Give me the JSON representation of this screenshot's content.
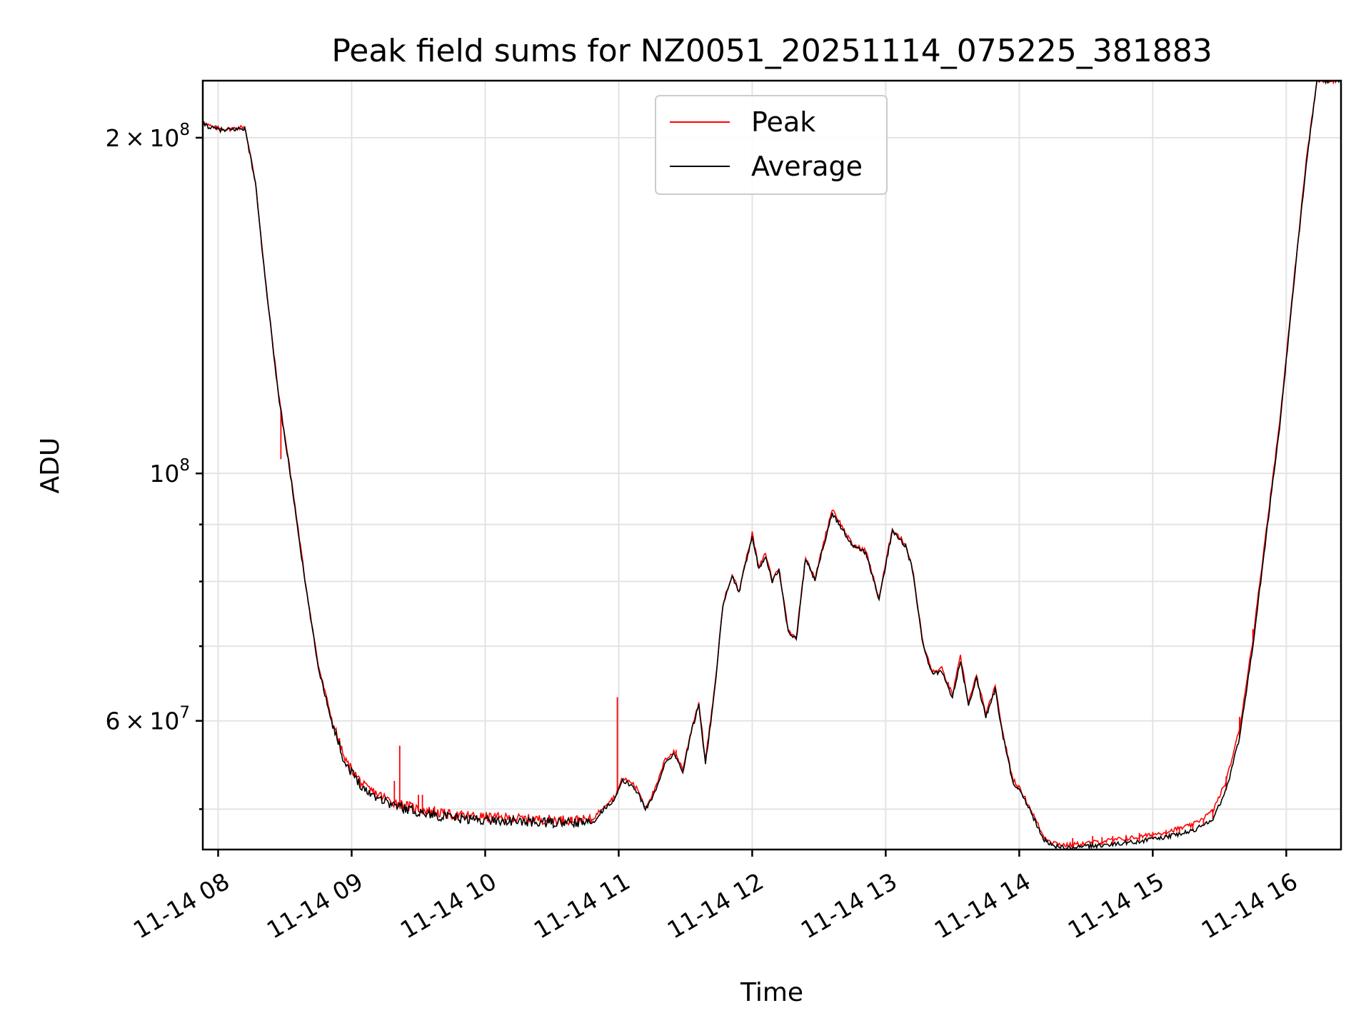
{
  "chart_data": {
    "type": "line",
    "title": "Peak field sums for NZ0051_20251114_075225_381883",
    "xlabel": "Time",
    "ylabel": "ADU",
    "yscale": "log",
    "xlim_hours": [
      7.885,
      16.41
    ],
    "ylim": [
      46000000,
      225000000
    ],
    "x_ticks": [
      {
        "hour": 8,
        "label": "11-14 08"
      },
      {
        "hour": 9,
        "label": "11-14 09"
      },
      {
        "hour": 10,
        "label": "11-14 10"
      },
      {
        "hour": 11,
        "label": "11-14 11"
      },
      {
        "hour": 12,
        "label": "11-14 12"
      },
      {
        "hour": 13,
        "label": "11-14 13"
      },
      {
        "hour": 14,
        "label": "11-14 14"
      },
      {
        "hour": 15,
        "label": "11-14 15"
      },
      {
        "hour": 16,
        "label": "11-14 16"
      }
    ],
    "y_major_ticks": [
      {
        "value": 60000000,
        "mant": "6",
        "exp": "7",
        "form": "mantissa"
      },
      {
        "value": 100000000,
        "mant": "",
        "exp": "8",
        "form": "power"
      },
      {
        "value": 200000000,
        "mant": "2",
        "exp": "8",
        "form": "mantissa"
      }
    ],
    "y_minor_grid": [
      50000000,
      70000000,
      80000000,
      90000000
    ],
    "legend": {
      "location": "upper center",
      "entries": [
        {
          "label": "Peak",
          "color": "#ff0000"
        },
        {
          "label": "Average",
          "color": "#000000"
        }
      ]
    },
    "series": [
      {
        "name": "Average",
        "color": "#000000",
        "points": [
          [
            7.885,
            206000000
          ],
          [
            7.95,
            204000000
          ],
          [
            8.05,
            203000000
          ],
          [
            8.2,
            204000000
          ],
          [
            8.28,
            182000000
          ],
          [
            8.35,
            150000000
          ],
          [
            8.45,
            118000000
          ],
          [
            8.55,
            98000000
          ],
          [
            8.65,
            80000000
          ],
          [
            8.75,
            67000000
          ],
          [
            8.85,
            60000000
          ],
          [
            8.95,
            55000000
          ],
          [
            9.1,
            52000000
          ],
          [
            9.3,
            50500000
          ],
          [
            9.5,
            49700000
          ],
          [
            9.75,
            49100000
          ],
          [
            10.0,
            48900000
          ],
          [
            10.3,
            48700000
          ],
          [
            10.6,
            48600000
          ],
          [
            10.8,
            48600000
          ],
          [
            10.9,
            50200000
          ],
          [
            10.97,
            51000000
          ],
          [
            11.03,
            53000000
          ],
          [
            11.1,
            52500000
          ],
          [
            11.15,
            51600000
          ],
          [
            11.2,
            49900000
          ],
          [
            11.28,
            52000000
          ],
          [
            11.35,
            55200000
          ],
          [
            11.42,
            56000000
          ],
          [
            11.48,
            54000000
          ],
          [
            11.55,
            59000000
          ],
          [
            11.6,
            62000000
          ],
          [
            11.65,
            55000000
          ],
          [
            11.72,
            64000000
          ],
          [
            11.78,
            76000000
          ],
          [
            11.85,
            81000000
          ],
          [
            11.9,
            78000000
          ],
          [
            11.95,
            83000000
          ],
          [
            12.0,
            88000000
          ],
          [
            12.05,
            82000000
          ],
          [
            12.1,
            84500000
          ],
          [
            12.15,
            80000000
          ],
          [
            12.2,
            82000000
          ],
          [
            12.27,
            72000000
          ],
          [
            12.33,
            71000000
          ],
          [
            12.4,
            84000000
          ],
          [
            12.47,
            80000000
          ],
          [
            12.52,
            85000000
          ],
          [
            12.6,
            92000000
          ],
          [
            12.68,
            89000000
          ],
          [
            12.75,
            86000000
          ],
          [
            12.85,
            85000000
          ],
          [
            12.95,
            77000000
          ],
          [
            13.05,
            89000000
          ],
          [
            13.15,
            86000000
          ],
          [
            13.2,
            82000000
          ],
          [
            13.28,
            70000000
          ],
          [
            13.35,
            66000000
          ],
          [
            13.42,
            66500000
          ],
          [
            13.5,
            63000000
          ],
          [
            13.56,
            68000000
          ],
          [
            13.62,
            62000000
          ],
          [
            13.68,
            65500000
          ],
          [
            13.75,
            60500000
          ],
          [
            13.82,
            64000000
          ],
          [
            13.88,
            58000000
          ],
          [
            13.95,
            53000000
          ],
          [
            14.02,
            51500000
          ],
          [
            14.1,
            49300000
          ],
          [
            14.18,
            47000000
          ],
          [
            14.25,
            46400000
          ],
          [
            14.35,
            46100000
          ],
          [
            14.5,
            46300000
          ],
          [
            14.7,
            46500000
          ],
          [
            14.9,
            46800000
          ],
          [
            15.1,
            47200000
          ],
          [
            15.3,
            47800000
          ],
          [
            15.45,
            49000000
          ],
          [
            15.55,
            52000000
          ],
          [
            15.65,
            58000000
          ],
          [
            15.75,
            70000000
          ],
          [
            15.85,
            88000000
          ],
          [
            15.95,
            110000000
          ],
          [
            16.05,
            145000000
          ],
          [
            16.15,
            190000000
          ],
          [
            16.23,
            225000000
          ],
          [
            16.41,
            225000000
          ]
        ]
      },
      {
        "name": "Peak",
        "color": "#ff0000",
        "points": [
          [
            7.885,
            206500000
          ],
          [
            7.95,
            204500000
          ],
          [
            8.05,
            203400000
          ],
          [
            8.2,
            204500000
          ],
          [
            8.28,
            182500000
          ],
          [
            8.35,
            150500000
          ],
          [
            8.45,
            118500000
          ],
          [
            8.55,
            98500000
          ],
          [
            8.65,
            80400000
          ],
          [
            8.75,
            67300000
          ],
          [
            8.85,
            60300000
          ],
          [
            8.95,
            55300000
          ],
          [
            9.1,
            52300000
          ],
          [
            9.3,
            50800000
          ],
          [
            9.5,
            50000000
          ],
          [
            9.75,
            49400000
          ],
          [
            10.0,
            49200000
          ],
          [
            10.3,
            49000000
          ],
          [
            10.6,
            48900000
          ],
          [
            10.8,
            48900000
          ],
          [
            10.9,
            50500000
          ],
          [
            10.97,
            51300000
          ],
          [
            11.03,
            53300000
          ],
          [
            11.1,
            52800000
          ],
          [
            11.15,
            51900000
          ],
          [
            11.2,
            50200000
          ],
          [
            11.28,
            52300000
          ],
          [
            11.35,
            55500000
          ],
          [
            11.42,
            56300000
          ],
          [
            11.48,
            54300000
          ],
          [
            11.55,
            59300000
          ],
          [
            11.6,
            62300000
          ],
          [
            11.65,
            55300000
          ],
          [
            11.72,
            64300000
          ],
          [
            11.78,
            76300000
          ],
          [
            11.85,
            81300000
          ],
          [
            11.9,
            78300000
          ],
          [
            11.95,
            83300000
          ],
          [
            12.0,
            88300000
          ],
          [
            12.05,
            82300000
          ],
          [
            12.1,
            84800000
          ],
          [
            12.15,
            80300000
          ],
          [
            12.2,
            82300000
          ],
          [
            12.27,
            72300000
          ],
          [
            12.33,
            71300000
          ],
          [
            12.4,
            84300000
          ],
          [
            12.47,
            80300000
          ],
          [
            12.52,
            85300000
          ],
          [
            12.6,
            93000000
          ],
          [
            12.68,
            89300000
          ],
          [
            12.75,
            86300000
          ],
          [
            12.85,
            85300000
          ],
          [
            12.95,
            77300000
          ],
          [
            13.05,
            89300000
          ],
          [
            13.15,
            86300000
          ],
          [
            13.2,
            82300000
          ],
          [
            13.28,
            70300000
          ],
          [
            13.35,
            66300000
          ],
          [
            13.42,
            66800000
          ],
          [
            13.5,
            63300000
          ],
          [
            13.56,
            68500000
          ],
          [
            13.62,
            62300000
          ],
          [
            13.68,
            65800000
          ],
          [
            13.75,
            60800000
          ],
          [
            13.82,
            64300000
          ],
          [
            13.88,
            58300000
          ],
          [
            13.95,
            53300000
          ],
          [
            14.02,
            51800000
          ],
          [
            14.1,
            49600000
          ],
          [
            14.18,
            47300000
          ],
          [
            14.25,
            46700000
          ],
          [
            14.35,
            46400000
          ],
          [
            14.5,
            46600000
          ],
          [
            14.7,
            46900000
          ],
          [
            14.9,
            47200000
          ],
          [
            15.1,
            47700000
          ],
          [
            15.3,
            48400000
          ],
          [
            15.45,
            49800000
          ],
          [
            15.55,
            53000000
          ],
          [
            15.65,
            59000000
          ],
          [
            15.75,
            71000000
          ],
          [
            15.85,
            89000000
          ],
          [
            15.95,
            111000000
          ],
          [
            16.05,
            146000000
          ],
          [
            16.15,
            191000000
          ],
          [
            16.23,
            225000000
          ],
          [
            16.41,
            225000000
          ]
        ],
        "spikes": [
          [
            8.47,
            103000000
          ],
          [
            9.32,
            53000000
          ],
          [
            9.36,
            57000000
          ],
          [
            9.5,
            51500000
          ],
          [
            9.53,
            51500000
          ],
          [
            9.62,
            50300000
          ],
          [
            9.82,
            49600000
          ],
          [
            10.21,
            49400000
          ],
          [
            10.65,
            49200000
          ],
          [
            10.7,
            49200000
          ],
          [
            10.99,
            63000000
          ],
          [
            11.43,
            56500000
          ],
          [
            14.4,
            47100000
          ],
          [
            14.55,
            47300000
          ],
          [
            14.62,
            47200000
          ],
          [
            14.7,
            47300000
          ],
          [
            14.8,
            47400000
          ],
          [
            14.9,
            47600000
          ],
          [
            15.0,
            47700000
          ],
          [
            15.1,
            47900000
          ],
          [
            15.2,
            48200000
          ],
          [
            15.3,
            48500000
          ],
          [
            15.38,
            49000000
          ],
          [
            15.45,
            50000000
          ],
          [
            15.55,
            53500000
          ],
          [
            15.65,
            60500000
          ],
          [
            15.75,
            72500000
          ]
        ]
      }
    ]
  }
}
